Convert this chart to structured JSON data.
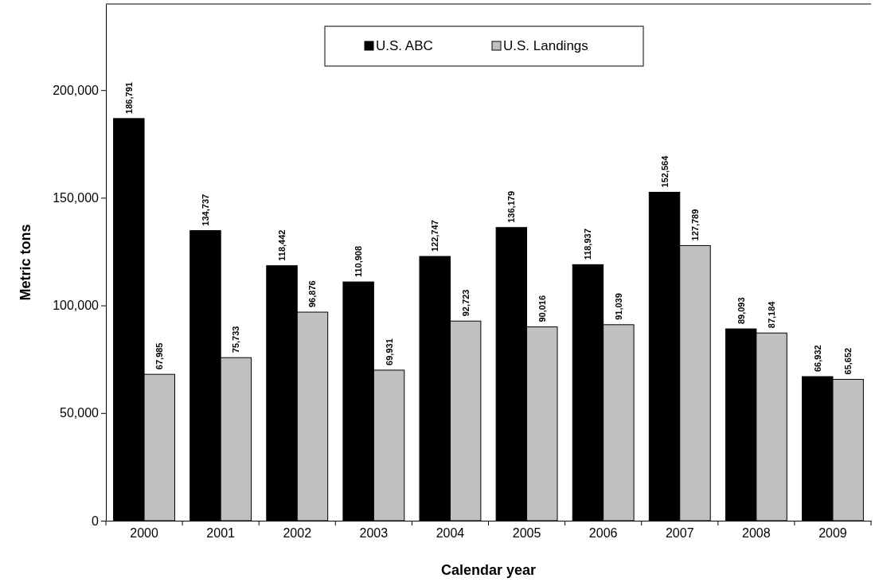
{
  "chart_data": {
    "type": "bar",
    "xlabel": "Calendar year",
    "ylabel": "Metric tons",
    "categories": [
      "2000",
      "2001",
      "2002",
      "2003",
      "2004",
      "2005",
      "2006",
      "2007",
      "2008",
      "2009"
    ],
    "series": [
      {
        "name": "U.S. ABC",
        "color": "#000000",
        "values": [
          186791,
          134737,
          118442,
          110908,
          122747,
          136179,
          118937,
          152564,
          89093,
          66932
        ],
        "value_labels": [
          "186,791",
          "134,737",
          "118,442",
          "110,908",
          "122,747",
          "136,179",
          "118,937",
          "152,564",
          "89,093",
          "66,932"
        ]
      },
      {
        "name": "U.S. Landings",
        "color": "#c0c0c0",
        "values": [
          67985,
          75733,
          96876,
          69931,
          92723,
          90016,
          91039,
          127789,
          87184,
          65652
        ],
        "value_labels": [
          "67,985",
          "75,733",
          "96,876",
          "69,931",
          "92,723",
          "90,016",
          "91,039",
          "127,789",
          "87,184",
          "65,652"
        ]
      }
    ],
    "ylim": [
      0,
      240000
    ],
    "yticks": [
      {
        "value": 0,
        "label": "0"
      },
      {
        "value": 50000,
        "label": "50,000"
      },
      {
        "value": 100000,
        "label": "100,000"
      },
      {
        "value": 150000,
        "label": "150,000"
      },
      {
        "value": 200000,
        "label": "200,000"
      }
    ],
    "legend": "top",
    "grid": false
  }
}
